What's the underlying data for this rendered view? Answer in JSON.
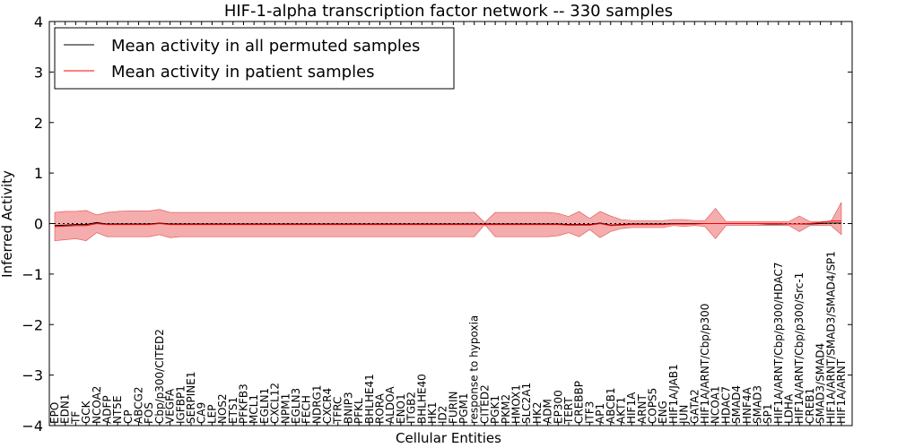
{
  "chart_data": {
    "type": "line",
    "title": "HIF-1-alpha transcription factor network -- 330 samples",
    "xlabel": "Cellular Entities",
    "ylabel": "Inferred Activity",
    "ylim": [
      -4,
      4
    ],
    "yticks": [
      "−4",
      "−3",
      "−2",
      "−1",
      "0",
      "1",
      "2",
      "3",
      "4"
    ],
    "legend_position": "top-left",
    "categories": [
      "EPO",
      "EDN1",
      "TF",
      "GCK",
      "NCOA2",
      "ADFP",
      "NT5E",
      "CP",
      "ABCG2",
      "FOS",
      "Cbp/p300/CITED2",
      "VEGFA",
      "IGFBP1",
      "SERPINE1",
      "CA9",
      "LEP",
      "NOS2",
      "ETS1",
      "PFKFB3",
      "MCL1",
      "EGLN1",
      "CXCL12",
      "NPM1",
      "EGLN3",
      "FECH",
      "NDRG1",
      "CXCR4",
      "TFRC",
      "BNIP3",
      "PFKL",
      "BHLHE41",
      "RORA",
      "ALDOA",
      "ENO1",
      "ITGB2",
      "BHLHE40",
      "HK1",
      "ID2",
      "FURIN",
      "PGM1",
      "response to hypoxia",
      "CITED2",
      "PGK1",
      "PKM2",
      "HMOX1",
      "SLC2A1",
      "HK2",
      "ADM",
      "EP300",
      "TERT",
      "CREBBP",
      "ITF3",
      "AP1",
      "ABCB1",
      "AKT1",
      "HIF1A",
      "ARNT",
      "COPS5",
      "ENG",
      "HIF1A/JAB1",
      "JUN",
      "GATA2",
      "HIF1A/ARNT/Cbp/p300",
      "NCOA1",
      "HDAC7",
      "SMAD4",
      "HNF4A",
      "SMAD3",
      "SP1",
      "HIF1A/ARNT/Cbp/p300/HDAC7",
      "LDHA",
      "HIF1A/ARNT/Cbp/p300/Src-1",
      "CREB1",
      "SMAD3/SMAD4",
      "HIF1A/ARNT/SMAD3/SMAD4/SP1",
      "HIF1A/ARNT"
    ],
    "series": [
      {
        "name": "Mean activity in all permuted samples",
        "color": "#000000",
        "values": [
          -0.04,
          -0.03,
          -0.02,
          -0.02,
          0.02,
          -0.01,
          -0.01,
          -0.01,
          -0.01,
          -0.01,
          0.01,
          -0.01,
          -0.01,
          -0.01,
          -0.01,
          -0.01,
          -0.01,
          -0.01,
          -0.01,
          -0.01,
          -0.01,
          -0.01,
          -0.01,
          -0.01,
          -0.01,
          -0.01,
          -0.01,
          -0.01,
          -0.01,
          -0.01,
          -0.01,
          -0.01,
          -0.01,
          -0.01,
          -0.01,
          -0.01,
          -0.01,
          -0.01,
          -0.01,
          -0.01,
          -0.01,
          -0.01,
          -0.01,
          -0.01,
          -0.01,
          -0.01,
          -0.01,
          -0.01,
          -0.01,
          -0.02,
          -0.02,
          -0.02,
          0.01,
          -0.03,
          -0.02,
          -0.01,
          -0.01,
          -0.01,
          -0.01,
          0.0,
          0.0,
          0.0,
          0.0,
          0.0,
          0.0,
          0.0,
          0.0,
          0.0,
          -0.01,
          -0.01,
          -0.01,
          -0.01,
          -0.01,
          0.0,
          0.01,
          0.01
        ]
      },
      {
        "name": "Mean activity in patient samples",
        "color": "#ff0000",
        "band_color": "#f08080",
        "values": [
          -0.06,
          -0.05,
          -0.04,
          -0.04,
          0.0,
          -0.02,
          -0.02,
          -0.02,
          -0.02,
          -0.02,
          0.0,
          -0.02,
          -0.02,
          -0.02,
          -0.02,
          -0.02,
          -0.02,
          -0.02,
          -0.02,
          -0.02,
          -0.02,
          -0.02,
          -0.02,
          -0.02,
          -0.02,
          -0.02,
          -0.02,
          -0.02,
          -0.02,
          -0.02,
          -0.02,
          -0.02,
          -0.02,
          -0.02,
          -0.02,
          -0.02,
          -0.02,
          -0.02,
          -0.02,
          -0.02,
          -0.02,
          -0.02,
          -0.02,
          -0.02,
          -0.02,
          -0.02,
          -0.02,
          -0.02,
          -0.02,
          -0.03,
          -0.03,
          -0.03,
          0.0,
          -0.04,
          -0.03,
          -0.02,
          -0.02,
          -0.02,
          -0.02,
          -0.01,
          -0.01,
          -0.01,
          0.0,
          0.0,
          0.0,
          0.0,
          0.0,
          0.0,
          0.0,
          0.0,
          -0.01,
          -0.01,
          0.0,
          0.02,
          0.05,
          0.05
        ],
        "upper": [
          0.22,
          0.24,
          0.24,
          0.26,
          0.17,
          0.22,
          0.24,
          0.25,
          0.25,
          0.25,
          0.28,
          0.22,
          0.22,
          0.22,
          0.22,
          0.22,
          0.22,
          0.22,
          0.22,
          0.22,
          0.22,
          0.22,
          0.22,
          0.22,
          0.22,
          0.22,
          0.22,
          0.22,
          0.22,
          0.22,
          0.22,
          0.22,
          0.22,
          0.22,
          0.22,
          0.22,
          0.22,
          0.22,
          0.22,
          0.22,
          0.22,
          0.02,
          0.22,
          0.22,
          0.22,
          0.22,
          0.22,
          0.22,
          0.2,
          0.14,
          0.24,
          0.1,
          0.24,
          0.15,
          0.08,
          0.06,
          0.06,
          0.06,
          0.06,
          0.08,
          0.08,
          0.06,
          0.06,
          0.3,
          0.04,
          0.04,
          0.04,
          0.04,
          0.04,
          0.04,
          0.04,
          0.15,
          0.04,
          0.04,
          0.04,
          0.42
        ],
        "lower": [
          -0.34,
          -0.32,
          -0.3,
          -0.34,
          -0.18,
          -0.26,
          -0.26,
          -0.26,
          -0.26,
          -0.26,
          -0.22,
          -0.28,
          -0.26,
          -0.26,
          -0.26,
          -0.26,
          -0.26,
          -0.26,
          -0.26,
          -0.26,
          -0.26,
          -0.26,
          -0.26,
          -0.26,
          -0.26,
          -0.26,
          -0.26,
          -0.26,
          -0.26,
          -0.26,
          -0.26,
          -0.26,
          -0.26,
          -0.26,
          -0.26,
          -0.26,
          -0.26,
          -0.26,
          -0.26,
          -0.26,
          -0.26,
          -0.02,
          -0.26,
          -0.26,
          -0.26,
          -0.26,
          -0.26,
          -0.26,
          -0.24,
          -0.18,
          -0.26,
          -0.12,
          -0.28,
          -0.16,
          -0.1,
          -0.08,
          -0.08,
          -0.08,
          -0.08,
          -0.04,
          -0.06,
          -0.04,
          -0.06,
          -0.3,
          -0.04,
          -0.04,
          -0.04,
          -0.04,
          -0.04,
          -0.04,
          -0.04,
          -0.16,
          -0.04,
          -0.04,
          -0.04,
          -0.22
        ]
      }
    ]
  }
}
